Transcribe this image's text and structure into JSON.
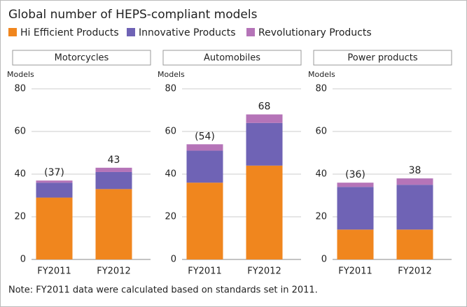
{
  "title": "Global number of HEPS-compliant models",
  "note": "Note: FY2011 data were calculated based on standards set in 2011.",
  "chart_data": [
    {
      "type": "bar",
      "stacked": true,
      "title": "Motorcycles",
      "ylabel": "Models",
      "categories": [
        "FY2011",
        "FY2012"
      ],
      "series": [
        {
          "name": "Hi Efficient Products",
          "color": "#f0861e",
          "values": [
            29,
            33
          ]
        },
        {
          "name": "Innovative Products",
          "color": "#6f63b5",
          "values": [
            7,
            8
          ]
        },
        {
          "name": "Revolutionary Products",
          "color": "#b574b8",
          "values": [
            1,
            2
          ]
        }
      ],
      "totals": {
        "values": [
          37,
          43
        ],
        "value_labels": [
          "(37)",
          "43"
        ]
      },
      "ylim": [
        0,
        80
      ],
      "yticks": [
        0,
        20,
        40,
        60,
        80
      ],
      "grid": true
    },
    {
      "type": "bar",
      "stacked": true,
      "title": "Automobiles",
      "ylabel": "Models",
      "categories": [
        "FY2011",
        "FY2012"
      ],
      "series": [
        {
          "name": "Hi Efficient Products",
          "color": "#f0861e",
          "values": [
            36,
            44
          ]
        },
        {
          "name": "Innovative Products",
          "color": "#6f63b5",
          "values": [
            15,
            20
          ]
        },
        {
          "name": "Revolutionary Products",
          "color": "#b574b8",
          "values": [
            3,
            4
          ]
        }
      ],
      "totals": {
        "values": [
          54,
          68
        ],
        "value_labels": [
          "(54)",
          "68"
        ]
      },
      "ylim": [
        0,
        80
      ],
      "yticks": [
        0,
        20,
        40,
        60,
        80
      ],
      "grid": true
    },
    {
      "type": "bar",
      "stacked": true,
      "title": "Power products",
      "ylabel": "Models",
      "categories": [
        "FY2011",
        "FY2012"
      ],
      "series": [
        {
          "name": "Hi Efficient Products",
          "color": "#f0861e",
          "values": [
            14,
            14
          ]
        },
        {
          "name": "Innovative Products",
          "color": "#6f63b5",
          "values": [
            20,
            21
          ]
        },
        {
          "name": "Revolutionary Products",
          "color": "#b574b8",
          "values": [
            2,
            3
          ]
        }
      ],
      "totals": {
        "values": [
          36,
          38
        ],
        "value_labels": [
          "(36)",
          "38"
        ]
      },
      "ylim": [
        0,
        80
      ],
      "yticks": [
        0,
        20,
        40,
        60,
        80
      ],
      "grid": true
    }
  ]
}
